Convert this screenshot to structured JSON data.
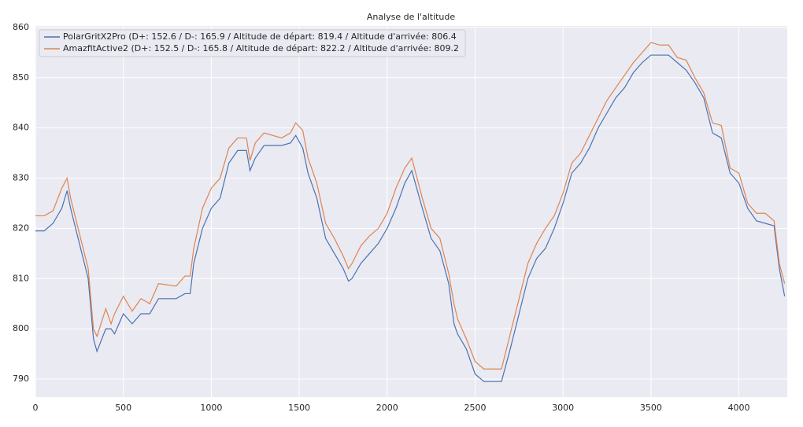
{
  "chart_data": {
    "type": "line",
    "title": "Analyse de l'altitude",
    "x": [
      0,
      50,
      100,
      150,
      180,
      200,
      250,
      300,
      330,
      350,
      400,
      430,
      450,
      500,
      550,
      600,
      650,
      700,
      800,
      850,
      880,
      900,
      950,
      1000,
      1050,
      1100,
      1150,
      1200,
      1220,
      1250,
      1300,
      1400,
      1450,
      1480,
      1520,
      1550,
      1600,
      1650,
      1700,
      1750,
      1780,
      1800,
      1850,
      1900,
      1950,
      2000,
      2050,
      2100,
      2140,
      2200,
      2250,
      2300,
      2350,
      2380,
      2400,
      2450,
      2500,
      2550,
      2650,
      2700,
      2750,
      2800,
      2850,
      2900,
      2950,
      3000,
      3050,
      3100,
      3150,
      3200,
      3250,
      3300,
      3350,
      3400,
      3450,
      3500,
      3550,
      3600,
      3650,
      3700,
      3750,
      3800,
      3850,
      3900,
      3950,
      4000,
      4050,
      4100,
      4150,
      4200,
      4230,
      4260
    ],
    "series": [
      {
        "name": "PolarGritX2Pro (D+: 152.6 / D-: 165.9 / Altitude de départ: 819.4 / Altitude d'arrivée: 806.4",
        "color": "#4c72b0",
        "values": [
          819.5,
          819.5,
          821,
          824,
          827.5,
          824,
          817,
          810,
          798,
          795.5,
          800,
          800,
          799,
          803,
          801,
          803,
          803,
          806,
          806,
          807,
          807,
          813,
          820,
          824,
          826,
          833,
          835.5,
          835.5,
          831.5,
          834,
          836.5,
          836.5,
          837,
          838.5,
          836,
          831,
          826,
          818,
          815,
          812,
          809.5,
          810,
          813,
          815,
          817,
          820,
          824,
          829,
          831.5,
          824,
          818,
          815.5,
          809,
          801,
          799,
          796,
          791,
          789.5,
          789.5,
          796,
          803,
          810,
          814,
          816,
          820,
          825,
          831,
          833,
          836,
          840,
          843,
          846,
          848,
          851,
          853,
          854.5,
          854.5,
          854.5,
          853,
          851.5,
          849,
          846,
          839,
          838,
          831,
          829,
          824,
          821.5,
          821,
          820.5,
          812,
          806.5
        ]
      },
      {
        "name": "AmazfitActive2 (D+: 152.5 / D-: 165.8 / Altitude de départ: 822.2 / Altitude d'arrivée: 809.2",
        "color": "#dd8452",
        "values": [
          822.5,
          822.5,
          823.5,
          828,
          830,
          826,
          819,
          812,
          800,
          798.5,
          804,
          801,
          803,
          806.5,
          803.5,
          806,
          805,
          809,
          808.5,
          810.5,
          810.5,
          816,
          824,
          828,
          830,
          836,
          838,
          838,
          833.5,
          837,
          839,
          838,
          839,
          841,
          839.5,
          834,
          829,
          821,
          818,
          814.5,
          812,
          813,
          816.5,
          818.5,
          820,
          823,
          828,
          832,
          834,
          826,
          820,
          818,
          811,
          805,
          802,
          798,
          793.5,
          792,
          792,
          799,
          806,
          813,
          817,
          820,
          822.5,
          827,
          833,
          835,
          838.5,
          842,
          845.5,
          848,
          850.5,
          853,
          855,
          857,
          856.5,
          856.5,
          854,
          853.5,
          850,
          847,
          841,
          840.5,
          832,
          831,
          825,
          823,
          823,
          821.5,
          813,
          809
        ]
      }
    ],
    "xlim": [
      0,
      4275
    ],
    "ylim": [
      786.4,
      860.3
    ],
    "xticks": [
      0,
      500,
      1000,
      1500,
      2000,
      2500,
      3000,
      3500,
      4000
    ],
    "yticks": [
      790,
      800,
      810,
      820,
      830,
      840,
      850,
      860
    ],
    "grid": true,
    "legend": "upper left"
  }
}
